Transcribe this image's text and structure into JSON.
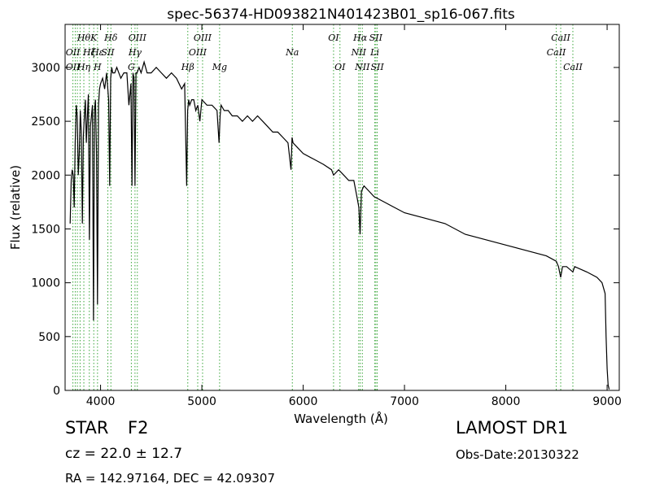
{
  "chart_data": {
    "type": "line",
    "title": "spec-56374-HD093821N401423B01_sp16-067.fits",
    "xlabel": "Wavelength (Å)",
    "ylabel": "Flux (relative)",
    "xlim": [
      3650,
      9120
    ],
    "ylim": [
      0,
      3400
    ],
    "xticks": [
      4000,
      5000,
      6000,
      7000,
      8000,
      9000
    ],
    "yticks": [
      0,
      500,
      1000,
      1500,
      2000,
      2500,
      3000
    ],
    "grid": false,
    "series": [
      {
        "x": [
          3700,
          3710,
          3720,
          3730,
          3740,
          3750,
          3760,
          3770,
          3780,
          3790,
          3800,
          3810,
          3820,
          3830,
          3840,
          3850,
          3860,
          3870,
          3880,
          3890,
          3900,
          3910,
          3920,
          3930,
          3940,
          3950,
          3960,
          3970,
          3980,
          3990,
          4000,
          4020,
          4040,
          4060,
          4080,
          4090,
          4100,
          4110,
          4120,
          4140,
          4160,
          4180,
          4200,
          4230,
          4260,
          4280,
          4300,
          4310,
          4320,
          4330,
          4340,
          4350,
          4360,
          4380,
          4400,
          4430,
          4460,
          4500,
          4550,
          4600,
          4650,
          4700,
          4750,
          4800,
          4830,
          4850,
          4860,
          4870,
          4880,
          4900,
          4920,
          4940,
          4960,
          4980,
          5000,
          5050,
          5100,
          5150,
          5170,
          5180,
          5190,
          5220,
          5260,
          5300,
          5350,
          5400,
          5450,
          5500,
          5550,
          5600,
          5650,
          5700,
          5750,
          5800,
          5850,
          5880,
          5890,
          5900,
          5950,
          6000,
          6100,
          6200,
          6280,
          6300,
          6350,
          6400,
          6450,
          6500,
          6530,
          6550,
          6562,
          6575,
          6600,
          6650,
          6700,
          6800,
          6900,
          7000,
          7200,
          7400,
          7600,
          7800,
          8000,
          8200,
          8400,
          8498,
          8520,
          8542,
          8560,
          8600,
          8662,
          8680,
          8800,
          8900,
          8950,
          8980,
          8990,
          9000,
          9010,
          9020
        ],
        "y": [
          1550,
          1950,
          2050,
          2000,
          1700,
          2300,
          2650,
          2550,
          2000,
          2200,
          2600,
          2400,
          1550,
          2350,
          2550,
          2700,
          2300,
          2550,
          2750,
          1400,
          2450,
          2550,
          2650,
          650,
          2600,
          2700,
          2200,
          800,
          2650,
          2800,
          2850,
          2900,
          2800,
          2950,
          2700,
          1900,
          2900,
          3000,
          2950,
          2950,
          3000,
          2950,
          2900,
          2950,
          2950,
          2650,
          2850,
          1900,
          2950,
          2900,
          1900,
          2950,
          2950,
          3000,
          2950,
          3050,
          2950,
          2950,
          3000,
          2950,
          2900,
          2950,
          2900,
          2800,
          2850,
          1900,
          2600,
          2700,
          2650,
          2700,
          2700,
          2600,
          2650,
          2500,
          2700,
          2650,
          2650,
          2600,
          2300,
          2550,
          2650,
          2600,
          2600,
          2550,
          2550,
          2500,
          2550,
          2500,
          2550,
          2500,
          2450,
          2400,
          2400,
          2350,
          2300,
          2050,
          2350,
          2300,
          2250,
          2200,
          2150,
          2100,
          2050,
          2000,
          2050,
          2000,
          1950,
          1950,
          1800,
          1700,
          1450,
          1850,
          1900,
          1850,
          1800,
          1750,
          1700,
          1650,
          1600,
          1550,
          1450,
          1400,
          1350,
          1300,
          1250,
          1200,
          1150,
          1050,
          1150,
          1150,
          1100,
          1150,
          1100,
          1050,
          1000,
          900,
          500,
          200,
          50,
          10
        ]
      }
    ],
    "line_markers": [
      {
        "wl": 3727,
        "labels": [
          {
            "text": "OII",
            "row": 2
          },
          {
            "text": "OII",
            "row": 3
          }
        ]
      },
      {
        "wl": 3750,
        "labels": []
      },
      {
        "wl": 3771,
        "labels": []
      },
      {
        "wl": 3798,
        "labels": []
      },
      {
        "wl": 3835,
        "labels": [
          {
            "text": "Hθ",
            "row": 1
          },
          {
            "text": "Hη",
            "row": 3
          }
        ]
      },
      {
        "wl": 3889,
        "labels": [
          {
            "text": "Hζ",
            "row": 2
          }
        ]
      },
      {
        "wl": 3933,
        "labels": [
          {
            "text": "K",
            "row": 1
          }
        ]
      },
      {
        "wl": 3970,
        "labels": [
          {
            "text": "Hε",
            "row": 2
          },
          {
            "text": "H",
            "row": 3
          }
        ]
      },
      {
        "wl": 4072,
        "labels": [
          {
            "text": "SII",
            "row": 2
          }
        ]
      },
      {
        "wl": 4102,
        "labels": [
          {
            "text": "Hδ",
            "row": 1
          }
        ]
      },
      {
        "wl": 4304,
        "labels": [
          {
            "text": "G",
            "row": 3
          }
        ]
      },
      {
        "wl": 4340,
        "labels": [
          {
            "text": "Hγ",
            "row": 2
          }
        ]
      },
      {
        "wl": 4363,
        "labels": [
          {
            "text": "OIII",
            "row": 1
          }
        ]
      },
      {
        "wl": 4861,
        "labels": [
          {
            "text": "Hβ",
            "row": 3
          }
        ]
      },
      {
        "wl": 4959,
        "labels": [
          {
            "text": "OIII",
            "row": 2
          }
        ]
      },
      {
        "wl": 5007,
        "labels": [
          {
            "text": "OIII",
            "row": 1
          }
        ]
      },
      {
        "wl": 5175,
        "labels": [
          {
            "text": "Mg",
            "row": 3
          }
        ]
      },
      {
        "wl": 5893,
        "labels": [
          {
            "text": "Na",
            "row": 2
          }
        ]
      },
      {
        "wl": 6300,
        "labels": [
          {
            "text": "OI",
            "row": 1
          }
        ]
      },
      {
        "wl": 6363,
        "labels": [
          {
            "text": "OI",
            "row": 3
          }
        ]
      },
      {
        "wl": 6548,
        "labels": [
          {
            "text": "NII",
            "row": 2
          }
        ]
      },
      {
        "wl": 6563,
        "labels": [
          {
            "text": "Hα",
            "row": 1
          }
        ]
      },
      {
        "wl": 6584,
        "labels": [
          {
            "text": "NII",
            "row": 3
          }
        ]
      },
      {
        "wl": 6707,
        "labels": [
          {
            "text": "Li",
            "row": 2
          }
        ]
      },
      {
        "wl": 6717,
        "labels": [
          {
            "text": "SII",
            "row": 1
          }
        ]
      },
      {
        "wl": 6731,
        "labels": [
          {
            "text": "SII",
            "row": 3
          }
        ]
      },
      {
        "wl": 8498,
        "labels": [
          {
            "text": "CaII",
            "row": 2
          }
        ]
      },
      {
        "wl": 8542,
        "labels": [
          {
            "text": "CaII",
            "row": 1
          }
        ]
      },
      {
        "wl": 8662,
        "labels": [
          {
            "text": "CaII",
            "row": 3
          }
        ]
      }
    ]
  },
  "info": {
    "object_class": "STAR",
    "subclass": "F2",
    "redshift": "cz = 22.0  ± 12.7",
    "coords": "RA = 142.97164, DEC = 42.09307",
    "survey": "LAMOST DR1",
    "obs_date": "Obs-Date:20130322"
  },
  "colors": {
    "spectrum": "#000000",
    "line_marker": "#3aa63a",
    "line_label": "#000000"
  }
}
